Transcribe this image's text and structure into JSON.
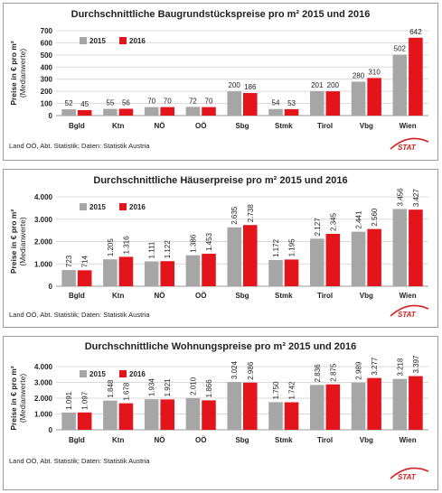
{
  "colors": {
    "y2015": "#a6a6a6",
    "y2016": "#e3151a",
    "grid": "#d9d9d9",
    "axis": "#999999",
    "logo": "#d81e1e"
  },
  "logo_text": "STAT",
  "chart_data": [
    {
      "type": "bar",
      "title": "Durchschnittliche Baugrundstückspreise pro m² 2015 und 2016",
      "ylabel": "Preise in € pro m²",
      "ylabel2": "(Medianwerte)",
      "source": "Land OÖ, Abt. Statistik; Daten: Statistik Austria",
      "categories": [
        "Bgld",
        "Ktn",
        "NÖ",
        "OÖ",
        "Sbg",
        "Stmk",
        "Tirol",
        "Vbg",
        "Wien"
      ],
      "ylim": [
        0,
        700
      ],
      "yticks": [
        0,
        100,
        200,
        300,
        400,
        500,
        600,
        700
      ],
      "ytick_labels": [
        "0",
        "100",
        "200",
        "300",
        "400",
        "500",
        "600",
        "700"
      ],
      "label_orientation": "horizontal",
      "legend_position": "top-left",
      "series": [
        {
          "name": "2015",
          "values": [
            52,
            55,
            70,
            72,
            200,
            54,
            201,
            280,
            502
          ],
          "labels": [
            "52",
            "55",
            "70",
            "72",
            "200",
            "54",
            "201",
            "280",
            "502"
          ]
        },
        {
          "name": "2016",
          "values": [
            45,
            56,
            70,
            70,
            186,
            53,
            200,
            310,
            642
          ],
          "labels": [
            "45",
            "56",
            "70",
            "70",
            "186",
            "53",
            "200",
            "310",
            "642"
          ]
        }
      ]
    },
    {
      "type": "bar",
      "title": "Durchschnittliche Häuserpreise pro m² 2015 und 2016",
      "ylabel": "Preise in € pro m²",
      "ylabel2": "(Medianwerte)",
      "source": "Land OÖ, Abt. Statistik; Daten: Statistik Austria",
      "categories": [
        "Bgld",
        "Ktn",
        "NÖ",
        "OÖ",
        "Sbg",
        "Stmk",
        "Tirol",
        "Vbg",
        "Wien"
      ],
      "ylim": [
        0,
        4000
      ],
      "yticks": [
        0,
        1000,
        2000,
        3000,
        4000
      ],
      "ytick_labels": [
        "0",
        "1.000",
        "2.000",
        "3.000",
        "4.000"
      ],
      "label_orientation": "vertical",
      "legend_position": "top-left",
      "series": [
        {
          "name": "2015",
          "values": [
            723,
            1205,
            1111,
            1386,
            2635,
            1172,
            2127,
            2441,
            3456
          ],
          "labels": [
            "723",
            "1.205",
            "1.111",
            "1.386",
            "2.635",
            "1.172",
            "2.127",
            "2.441",
            "3.456"
          ]
        },
        {
          "name": "2016",
          "values": [
            714,
            1316,
            1122,
            1453,
            2738,
            1195,
            2345,
            2560,
            3427
          ],
          "labels": [
            "714",
            "1.316",
            "1.122",
            "1.453",
            "2.738",
            "1.195",
            "2.345",
            "2.560",
            "3.427"
          ]
        }
      ]
    },
    {
      "type": "bar",
      "title": "Durchschnittliche Wohnungspreise pro m² 2015 und 2016",
      "ylabel": "Preise in € pro m²",
      "ylabel2": "(Medianwerte)",
      "source": "Land OÖ, Abt. Statistik; Daten: Statistik Austria",
      "categories": [
        "Bgld",
        "Ktn",
        "NÖ",
        "OÖ",
        "Sbg",
        "Stmk",
        "Tirol",
        "Vbg",
        "Wien"
      ],
      "ylim": [
        0,
        4000
      ],
      "yticks": [
        0,
        1000,
        2000,
        3000,
        4000
      ],
      "ytick_labels": [
        "0",
        "1.000",
        "2.000",
        "3.000",
        "4.000"
      ],
      "label_orientation": "vertical",
      "legend_position": "top-left",
      "series": [
        {
          "name": "2015",
          "values": [
            1091,
            1848,
            1934,
            2010,
            3024,
            1750,
            2836,
            2989,
            3218
          ],
          "labels": [
            "1.091",
            "1.848",
            "1.934",
            "2.010",
            "3.024",
            "1.750",
            "2.836",
            "2.989",
            "3.218"
          ]
        },
        {
          "name": "2016",
          "values": [
            1097,
            1678,
            1921,
            1866,
            2986,
            1742,
            2875,
            3277,
            3397
          ],
          "labels": [
            "1.097",
            "1.678",
            "1.921",
            "1.866",
            "2.986",
            "1.742",
            "2.875",
            "3.277",
            "3.397"
          ]
        }
      ]
    }
  ]
}
